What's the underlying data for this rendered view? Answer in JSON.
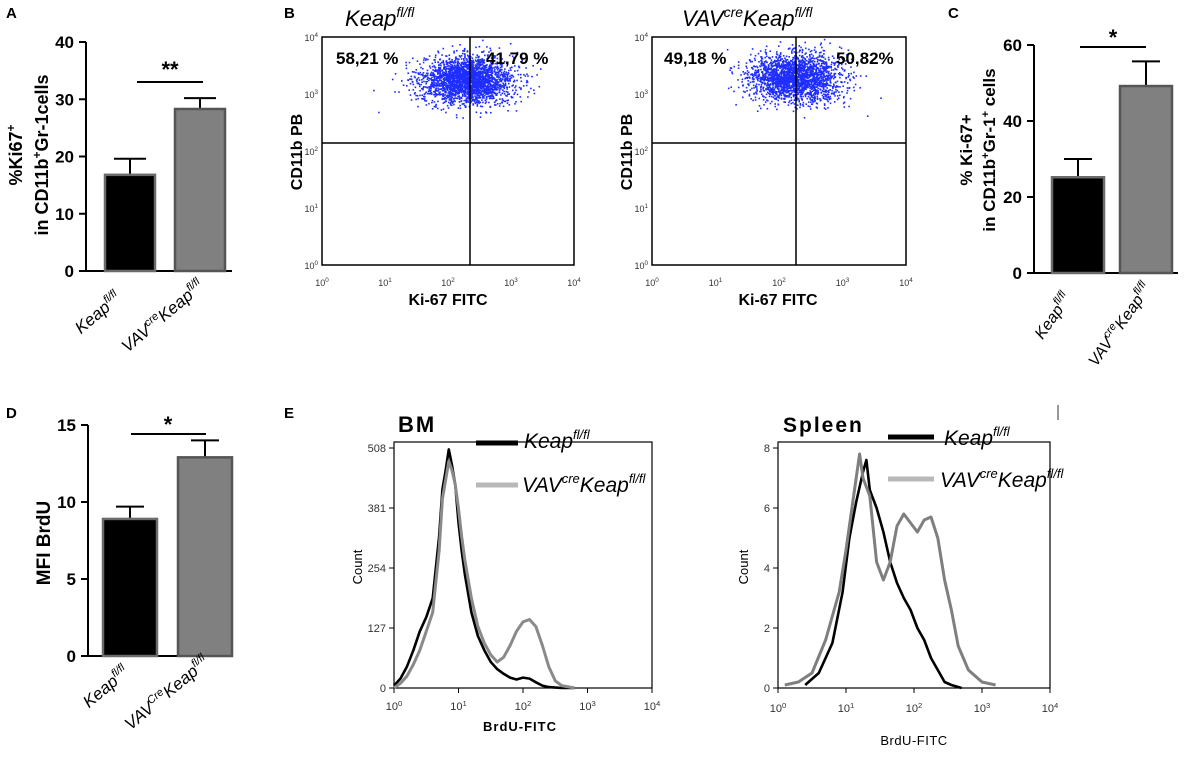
{
  "colors": {
    "keap_bar": "#000000",
    "vav_bar": "#808080",
    "axis": "#000000",
    "dots": "#1e2dff",
    "keap_hist": "#000000",
    "vav_hist_bm": "#8a8a8a",
    "vav_hist_spleen": "#7f7f7f",
    "legend_vav": "#b8b8b8"
  },
  "panels": {
    "A": {
      "label": "A",
      "ylabel_line1": "%Ki67",
      "ylabel_line1_sup": "+",
      "ylabel_line2_pre": "in CD11b",
      "ylabel_line2_sup": "+",
      "ylabel_line2_post": "Gr-1cells",
      "significance": "**",
      "yticks": [
        "0",
        "10",
        "20",
        "30",
        "40"
      ],
      "group1": {
        "base": "Keap",
        "sup": "fl/fl"
      },
      "group2": {
        "pre": "VAV",
        "pre_sup": "cre",
        "base": "Keap",
        "sup": "fl/fl"
      }
    },
    "B": {
      "label": "B",
      "plot1_title": {
        "base": "Keap",
        "sup": "fl/fl"
      },
      "plot2_title": {
        "pre": "VAV",
        "pre_sup": "cre",
        "base": "Keap",
        "sup": "fl/fl"
      },
      "ylabel": "CD11b PB",
      "xlabel": "Ki-67 FITC",
      "plot1_left_pct": "58,21 %",
      "plot1_right_pct": "41,79 %",
      "plot2_left_pct": "49,18 %",
      "plot2_right_pct": "50,82%",
      "tick_base": "10",
      "tick_exps": [
        "0",
        "1",
        "2",
        "3",
        "4"
      ]
    },
    "C": {
      "label": "C",
      "ylabel_line1_pre": "% Ki-67+",
      "ylabel_line2_pre": "in CD11b",
      "ylabel_line2_sup1": "+",
      "ylabel_line2_mid": "Gr-1",
      "ylabel_line2_sup2": "+",
      "ylabel_line2_post": " cells",
      "significance": "*",
      "yticks": [
        "0",
        "20",
        "40",
        "60"
      ],
      "group1": {
        "base": "Keap",
        "sup": "fl/fl"
      },
      "group2": {
        "pre": "VAV",
        "pre_sup": "cre",
        "base": "Keap",
        "sup": "fl/fl"
      }
    },
    "D": {
      "label": "D",
      "ylabel": "MFI BrdU",
      "significance": "*",
      "yticks": [
        "0",
        "5",
        "10",
        "15"
      ],
      "group1": {
        "base": "Keap",
        "sup": "fl/fl"
      },
      "group2": {
        "pre": "VAV",
        "pre_sup": "Cre",
        "base": "Keap",
        "sup": "fl/fl"
      }
    },
    "E": {
      "label": "E",
      "bm_title": "BM",
      "spleen_title": "Spleen",
      "ylabel": "Count",
      "xlabel": "BrdU-FITC",
      "legend_keap": {
        "base": "Keap",
        "sup": "fl/fl"
      },
      "legend_vav": {
        "pre": "VAV",
        "pre_sup": "cre",
        "base": "Keap",
        "sup": "fl/fl"
      },
      "bm_yticks": [
        "0",
        "127",
        "254",
        "381",
        "508"
      ],
      "spleen_yticks": [
        "0",
        "2",
        "4",
        "6",
        "8"
      ],
      "tick_base": "10",
      "tick_exps": [
        "0",
        "1",
        "2",
        "3",
        "4"
      ]
    }
  },
  "chart_data": [
    {
      "id": "A",
      "type": "bar",
      "categories": [
        "Keap fl/fl",
        "VAVcre Keap fl/fl"
      ],
      "values": [
        16.8,
        28.3
      ],
      "errors": [
        2.8,
        1.9
      ],
      "ylim": [
        0,
        40
      ],
      "ylabel": "%Ki67+ in CD11b+Gr-1cells",
      "significance": "**"
    },
    {
      "id": "B",
      "type": "scatter",
      "title": "Flow cytometry dot plots (CD11b PB vs Ki-67 FITC)",
      "xlabel": "Ki-67 FITC",
      "ylabel": "CD11b PB",
      "xlim_log10": [
        0,
        4
      ],
      "ylim_log10": [
        0,
        4
      ],
      "gate_x_log10": 2.25,
      "gate_y_log10": 2.1,
      "series": [
        {
          "name": "Keap fl/fl",
          "left_pct": 58.21,
          "right_pct": 41.79
        },
        {
          "name": "VAVcre Keap fl/fl",
          "left_pct": 49.18,
          "right_pct": 50.82
        }
      ]
    },
    {
      "id": "C",
      "type": "bar",
      "categories": [
        "Keap fl/fl",
        "VAVcre Keap fl/fl"
      ],
      "values": [
        25.2,
        49.2
      ],
      "errors": [
        4.8,
        6.5
      ],
      "ylim": [
        0,
        60
      ],
      "ylabel": "% Ki-67+ in CD11b+Gr-1+ cells",
      "significance": "*"
    },
    {
      "id": "D",
      "type": "bar",
      "categories": [
        "Keap fl/fl",
        "VAVCre Keap fl/fl"
      ],
      "values": [
        8.9,
        12.9
      ],
      "errors": [
        0.8,
        1.1
      ],
      "ylim": [
        0,
        15
      ],
      "ylabel": "MFI BrdU",
      "significance": "*"
    },
    {
      "id": "E-BM",
      "type": "line",
      "title": "BM",
      "xlabel": "BrdU-FITC",
      "ylabel": "Count",
      "xlim_log10": [
        0,
        4
      ],
      "ylim": [
        0,
        508
      ],
      "series": [
        {
          "name": "Keap fl/fl",
          "x_log10": [
            0,
            0.1,
            0.2,
            0.3,
            0.4,
            0.5,
            0.6,
            0.7,
            0.75,
            0.8,
            0.85,
            0.9,
            0.95,
            1.0,
            1.05,
            1.1,
            1.2,
            1.3,
            1.4,
            1.5,
            1.6,
            1.7,
            1.8,
            1.9,
            2.0,
            2.1,
            2.2,
            2.3,
            2.4,
            2.6,
            2.8
          ],
          "y": [
            5,
            20,
            45,
            80,
            120,
            150,
            190,
            320,
            420,
            460,
            505,
            470,
            430,
            350,
            290,
            240,
            160,
            110,
            80,
            55,
            40,
            30,
            22,
            18,
            22,
            20,
            12,
            5,
            2,
            0,
            0
          ]
        },
        {
          "name": "VAVcre Keap fl/fl",
          "x_log10": [
            0,
            0.1,
            0.2,
            0.3,
            0.4,
            0.5,
            0.6,
            0.7,
            0.75,
            0.8,
            0.85,
            0.9,
            0.95,
            1.0,
            1.05,
            1.1,
            1.2,
            1.3,
            1.4,
            1.5,
            1.6,
            1.7,
            1.8,
            1.9,
            2.0,
            2.1,
            2.2,
            2.3,
            2.4,
            2.5,
            2.6,
            2.8
          ],
          "y": [
            0,
            10,
            25,
            50,
            80,
            120,
            160,
            290,
            400,
            440,
            480,
            460,
            430,
            380,
            320,
            270,
            190,
            130,
            95,
            70,
            55,
            65,
            90,
            120,
            140,
            145,
            130,
            90,
            45,
            15,
            5,
            0
          ]
        }
      ]
    },
    {
      "id": "E-Spleen",
      "type": "line",
      "title": "Spleen",
      "xlabel": "BrdU-FITC",
      "ylabel": "Count",
      "xlim_log10": [
        0,
        4
      ],
      "ylim": [
        0,
        8
      ],
      "series": [
        {
          "name": "Keap fl/fl",
          "x_log10": [
            0.4,
            0.6,
            0.8,
            0.95,
            1.05,
            1.15,
            1.25,
            1.3,
            1.35,
            1.45,
            1.55,
            1.65,
            1.75,
            1.85,
            1.95,
            2.05,
            2.15,
            2.25,
            2.35,
            2.45,
            2.55,
            2.7
          ],
          "y": [
            0.1,
            0.5,
            1.5,
            3.2,
            5.0,
            6.2,
            7.2,
            7.6,
            6.6,
            6.0,
            5.2,
            4.2,
            3.5,
            3.0,
            2.6,
            2.0,
            1.6,
            1.0,
            0.6,
            0.2,
            0.1,
            0
          ]
        },
        {
          "name": "VAVcre Keap fl/fl",
          "x_log10": [
            0.1,
            0.3,
            0.5,
            0.7,
            0.9,
            1.0,
            1.1,
            1.2,
            1.25,
            1.35,
            1.45,
            1.55,
            1.65,
            1.75,
            1.85,
            1.95,
            2.05,
            2.15,
            2.25,
            2.35,
            2.45,
            2.55,
            2.65,
            2.8,
            3.0,
            3.2
          ],
          "y": [
            0.1,
            0.2,
            0.5,
            1.6,
            3.2,
            4.6,
            6.2,
            7.8,
            7.0,
            6.4,
            4.2,
            3.6,
            4.2,
            5.4,
            5.8,
            5.5,
            5.2,
            5.6,
            5.7,
            5.0,
            3.6,
            2.6,
            1.4,
            0.6,
            0.2,
            0.1
          ]
        }
      ]
    }
  ]
}
